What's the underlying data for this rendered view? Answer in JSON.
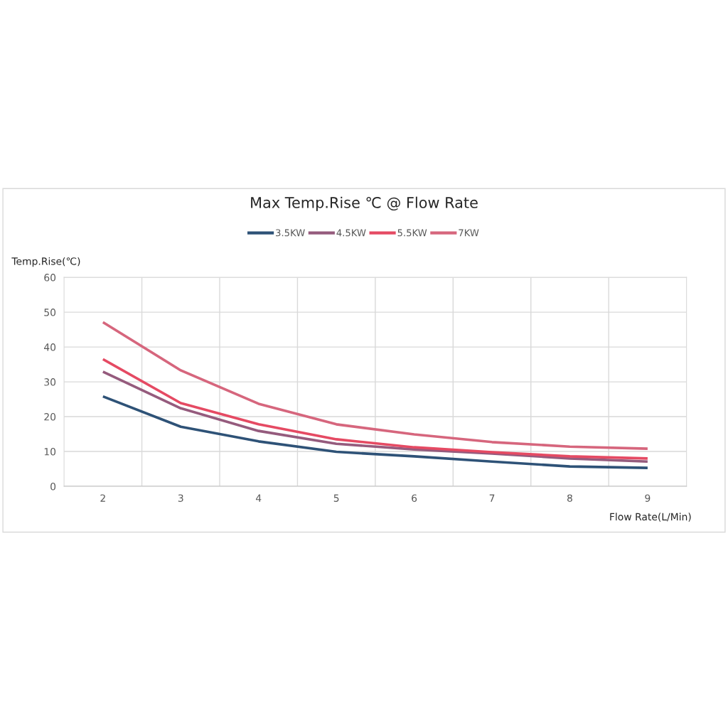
{
  "chart_data": {
    "type": "line",
    "title": "Max Temp.Rise ℃ @ Flow Rate",
    "xlabel": "Flow Rate(L/Min)",
    "ylabel": "Temp.Rise(℃)",
    "categories": [
      "2",
      "3",
      "4",
      "5",
      "6",
      "7",
      "8",
      "9"
    ],
    "series": [
      {
        "name": "3.5KW",
        "color": "#2e5277",
        "values": [
          25.8,
          17.1,
          12.9,
          9.9,
          8.6,
          7.1,
          5.7,
          5.3
        ]
      },
      {
        "name": "4.5KW",
        "color": "#955b7d",
        "values": [
          32.9,
          22.4,
          15.9,
          12.2,
          10.6,
          9.4,
          8.0,
          7.1
        ]
      },
      {
        "name": "5.5KW",
        "color": "#e54a63",
        "values": [
          36.5,
          23.9,
          17.8,
          13.5,
          11.2,
          9.8,
          8.6,
          8.0
        ]
      },
      {
        "name": "7KW",
        "color": "#d6667d",
        "values": [
          47.1,
          33.3,
          23.7,
          17.8,
          14.9,
          12.7,
          11.4,
          10.8
        ]
      }
    ],
    "ylim": [
      0,
      60
    ],
    "yticks": [
      0,
      10,
      20,
      30,
      40,
      50,
      60
    ],
    "grid": true,
    "legend": "top",
    "marker": "none",
    "line_style": "solid"
  }
}
